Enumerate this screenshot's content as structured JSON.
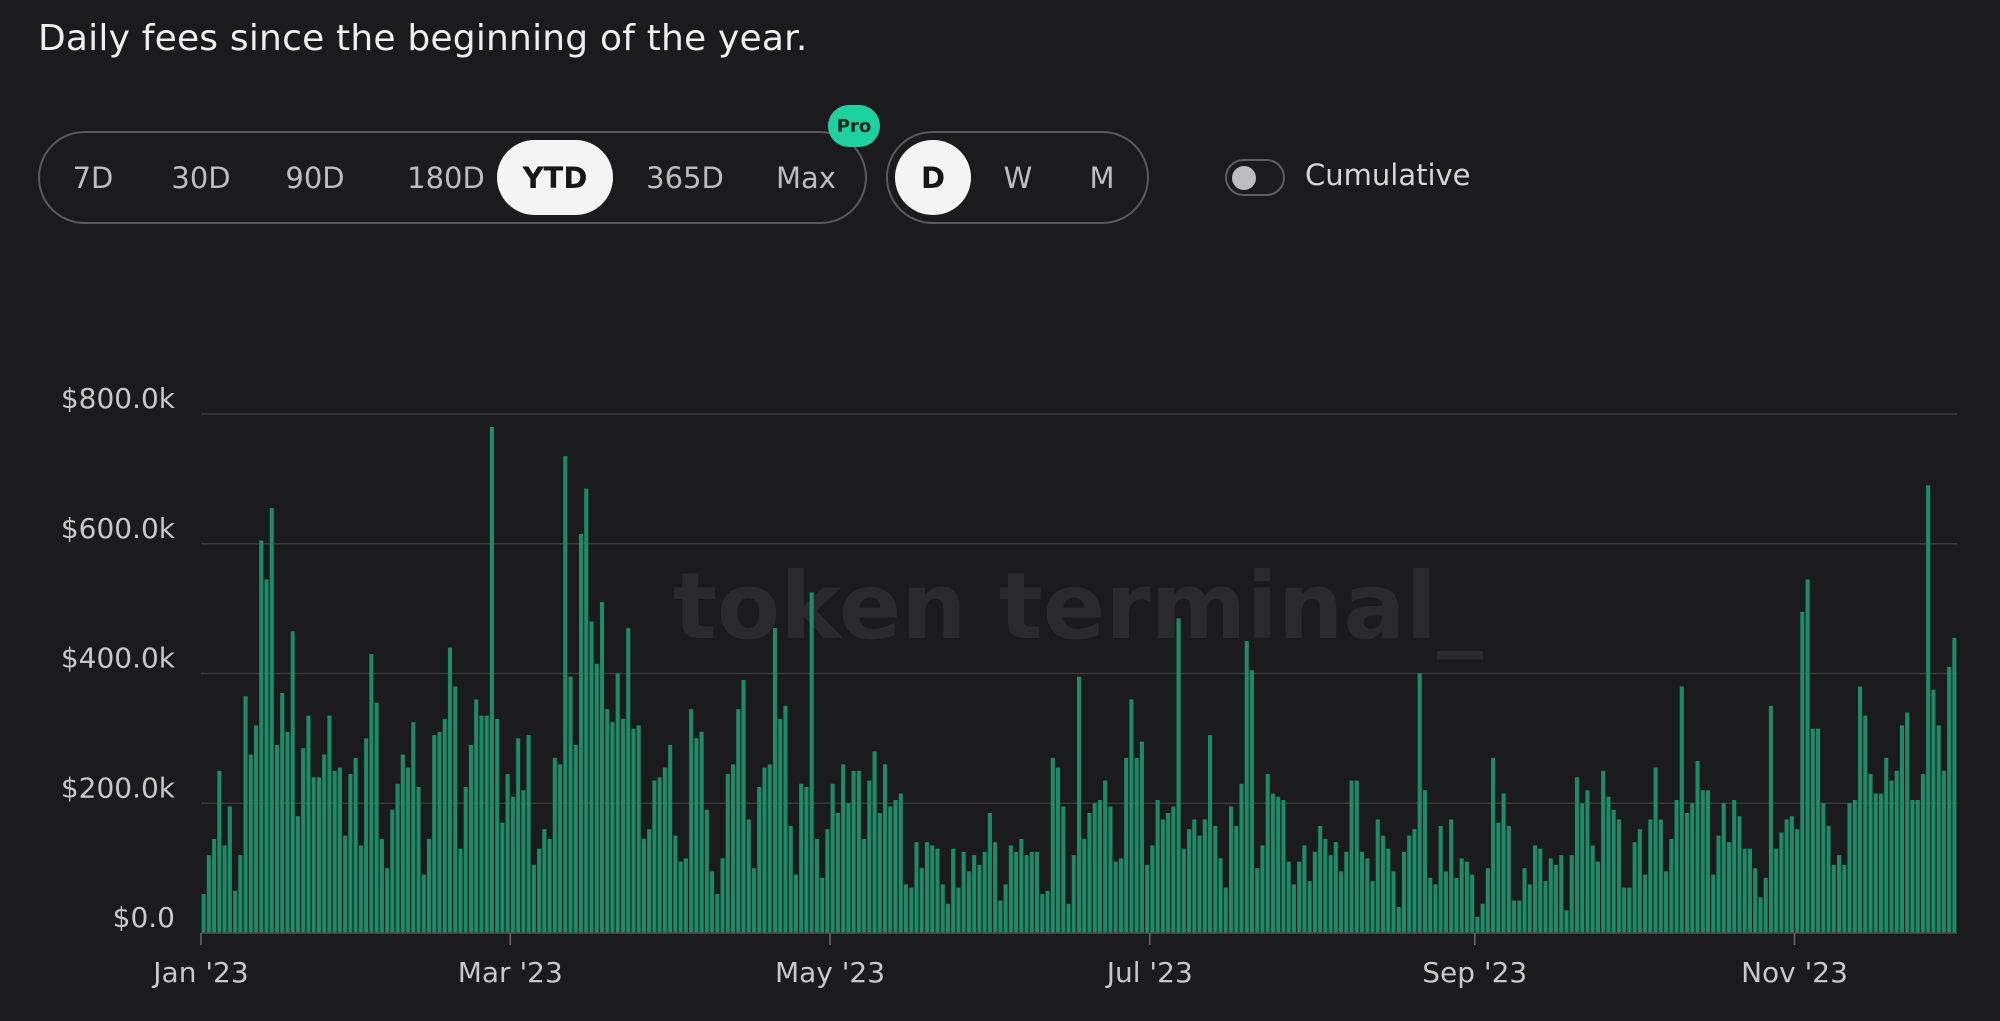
{
  "header": {
    "title": "Daily fees since the beginning of the year."
  },
  "controls": {
    "range_options": [
      "7D",
      "30D",
      "90D",
      "180D",
      "YTD",
      "365D",
      "Max"
    ],
    "range_selected": "YTD",
    "pro_badge": "Pro",
    "granularity_options": [
      "D",
      "W",
      "M"
    ],
    "granularity_selected": "D",
    "cumulative_label": "Cumulative",
    "cumulative_on": false
  },
  "watermark": "token terminal_",
  "colors": {
    "background": "#1b1b1d",
    "bar": "#1f8a6a",
    "gridline": "#3a3a3e",
    "pro_badge": "#1fd1a1"
  },
  "chart_data": {
    "type": "bar",
    "title": "Daily fees since the beginning of the year.",
    "y_tick_labels": [
      "$0.0",
      "$200.0k",
      "$400.0k",
      "$600.0k",
      "$800.0k"
    ],
    "ylim": [
      0,
      800000
    ],
    "x_tick_labels": [
      "Jan '23",
      "Mar '23",
      "May '23",
      "Jul '23",
      "Sep '23",
      "Nov '23"
    ],
    "x_tick_dates": [
      "2023-01-01",
      "2023-03-01",
      "2023-05-01",
      "2023-07-01",
      "2023-09-01",
      "2023-11-01"
    ],
    "x_start": "2023-01-01",
    "x_end": "2023-11-13",
    "grid": true,
    "legend": "none",
    "series": [
      {
        "values": [
          60000,
          120000,
          145000,
          250000,
          135000,
          195000,
          65000,
          120000,
          365000,
          275000,
          320000,
          605000,
          545000,
          655000,
          290000,
          370000,
          310000,
          465000,
          180000,
          285000,
          335000,
          240000,
          240000,
          275000,
          335000,
          250000,
          255000,
          150000,
          245000,
          270000,
          135000,
          300000,
          430000,
          355000,
          145000,
          100000,
          190000,
          230000,
          275000,
          255000,
          325000,
          225000,
          90000,
          145000,
          305000,
          310000,
          330000,
          440000,
          380000,
          130000,
          225000,
          290000,
          360000,
          335000,
          335000,
          780000,
          330000,
          170000,
          245000,
          210000,
          300000,
          220000,
          305000,
          105000,
          130000,
          160000,
          145000,
          270000,
          260000,
          735000,
          395000,
          290000,
          615000,
          685000,
          480000,
          415000,
          510000,
          345000,
          325000,
          400000,
          330000,
          470000,
          315000,
          320000,
          145000,
          160000,
          235000,
          240000,
          255000,
          290000,
          150000,
          110000,
          115000,
          345000,
          300000,
          310000,
          190000,
          95000,
          60000,
          115000,
          245000,
          260000,
          345000,
          390000,
          175000,
          100000,
          225000,
          255000,
          260000,
          470000,
          330000,
          350000,
          165000,
          90000,
          230000,
          225000,
          525000,
          145000,
          85000,
          160000,
          230000,
          185000,
          260000,
          200000,
          250000,
          250000,
          145000,
          235000,
          280000,
          185000,
          260000,
          195000,
          205000,
          215000,
          75000,
          70000,
          140000,
          100000,
          140000,
          135000,
          130000,
          75000,
          45000,
          130000,
          70000,
          125000,
          95000,
          120000,
          105000,
          125000,
          185000,
          140000,
          50000,
          75000,
          135000,
          125000,
          145000,
          120000,
          125000,
          125000,
          60000,
          65000,
          270000,
          255000,
          195000,
          45000,
          120000,
          395000,
          145000,
          185000,
          200000,
          205000,
          235000,
          195000,
          110000,
          115000,
          270000,
          360000,
          270000,
          295000,
          105000,
          135000,
          205000,
          175000,
          185000,
          195000,
          485000,
          130000,
          160000,
          175000,
          150000,
          175000,
          305000,
          165000,
          115000,
          70000,
          195000,
          165000,
          230000,
          450000,
          405000,
          100000,
          135000,
          245000,
          215000,
          210000,
          205000,
          110000,
          75000,
          110000,
          135000,
          80000,
          125000,
          165000,
          145000,
          120000,
          140000,
          95000,
          125000,
          235000,
          235000,
          125000,
          115000,
          80000,
          175000,
          150000,
          130000,
          95000,
          40000,
          125000,
          150000,
          160000,
          400000,
          220000,
          85000,
          75000,
          165000,
          95000,
          175000,
          85000,
          115000,
          110000,
          90000,
          25000,
          45000,
          100000,
          270000,
          170000,
          215000,
          165000,
          50000,
          50000,
          100000,
          75000,
          135000,
          130000,
          80000,
          115000,
          105000,
          120000,
          35000,
          120000,
          240000,
          200000,
          220000,
          135000,
          110000,
          250000,
          210000,
          190000,
          175000,
          70000,
          70000,
          140000,
          160000,
          90000,
          175000,
          255000,
          175000,
          95000,
          145000,
          205000,
          380000,
          185000,
          200000,
          265000,
          220000,
          220000,
          90000,
          150000,
          200000,
          140000,
          205000,
          180000,
          130000,
          130000,
          100000,
          55000,
          85000,
          350000,
          130000,
          155000,
          175000,
          180000,
          160000,
          495000,
          545000,
          315000,
          315000,
          200000,
          165000,
          105000,
          120000,
          105000,
          200000,
          205000,
          380000,
          335000,
          245000,
          215000,
          215000,
          270000,
          235000,
          250000,
          320000,
          340000,
          205000,
          205000,
          245000,
          690000,
          375000,
          320000,
          250000,
          410000,
          455000
        ]
      }
    ]
  }
}
